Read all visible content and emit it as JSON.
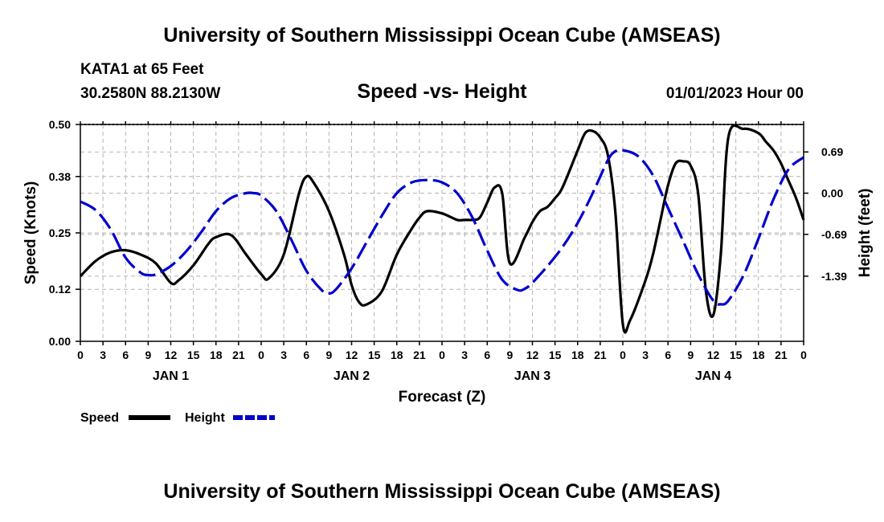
{
  "header": {
    "title": "University of Southern Mississippi Ocean Cube (AMSEAS)",
    "station": "KATA1 at 65 Feet",
    "coords": "30.2580N  88.2130W",
    "subtitle": "Speed -vs- Height",
    "datetime": "01/01/2023 Hour 00"
  },
  "footer": {
    "title": "University of Southern Mississippi Ocean Cube (AMSEAS)"
  },
  "chart_data": {
    "type": "line",
    "xlabel": "Forecast (Z)",
    "ylabel_left": "Speed (Knots)",
    "ylabel_right": "Height (feet)",
    "x_unit": "forecast hour",
    "xlim": [
      0,
      96
    ],
    "ylim_left": [
      0,
      0.5
    ],
    "ylim_right": [
      -2.48,
      1.15
    ],
    "x_tick_hours": [
      0,
      3,
      6,
      9,
      12,
      15,
      18,
      21,
      24,
      27,
      30,
      33,
      36,
      39,
      42,
      45,
      48,
      51,
      54,
      57,
      60,
      63,
      66,
      69,
      72,
      75,
      78,
      81,
      84,
      87,
      90,
      93,
      96
    ],
    "x_tick_labels": [
      "0",
      "3",
      "6",
      "9",
      "12",
      "15",
      "18",
      "21",
      "0",
      "3",
      "6",
      "9",
      "12",
      "15",
      "18",
      "21",
      "0",
      "3",
      "6",
      "9",
      "12",
      "15",
      "18",
      "21",
      "0",
      "3",
      "6",
      "9",
      "12",
      "15",
      "18",
      "21",
      "0"
    ],
    "day_labels": [
      {
        "hour": 12,
        "label": "JAN 1"
      },
      {
        "hour": 36,
        "label": "JAN 2"
      },
      {
        "hour": 60,
        "label": "JAN 3"
      },
      {
        "hour": 84,
        "label": "JAN 4"
      }
    ],
    "y_left_ticks": [
      0.0,
      0.12,
      0.25,
      0.38,
      0.5
    ],
    "y_left_tick_labels": [
      "0.00",
      "0.12",
      "0.25",
      "0.38",
      "0.50"
    ],
    "y_right_ticks": [
      0.69,
      0.0,
      -0.69,
      -1.39
    ],
    "y_right_tick_labels": [
      "0.69",
      "0.00",
      "-0.69",
      "-1.39"
    ],
    "grid": true,
    "legend": {
      "position": "bottom-left",
      "speed_label": "Speed",
      "height_label": "Height"
    },
    "series": [
      {
        "name": "Speed",
        "axis": "left",
        "color": "#000000",
        "dash": "solid",
        "x": [
          0,
          2,
          4,
          6,
          8,
          10,
          12,
          13,
          15,
          17,
          18,
          20,
          22,
          24,
          25,
          27,
          29,
          30,
          31,
          33,
          35,
          36,
          37,
          38,
          40,
          42,
          44,
          45,
          46,
          48,
          50,
          51,
          52,
          53,
          54,
          55,
          56,
          57,
          59,
          60,
          61,
          62,
          63,
          64,
          66,
          67,
          68,
          69,
          70,
          71,
          72,
          73,
          75,
          76,
          77,
          78,
          79,
          80,
          81,
          82,
          83,
          84,
          85,
          86,
          88,
          90,
          91,
          92,
          93,
          94,
          95,
          96
        ],
        "values": [
          0.15,
          0.185,
          0.205,
          0.21,
          0.2,
          0.18,
          0.135,
          0.14,
          0.175,
          0.225,
          0.24,
          0.245,
          0.2,
          0.155,
          0.145,
          0.2,
          0.34,
          0.38,
          0.365,
          0.3,
          0.2,
          0.13,
          0.09,
          0.085,
          0.115,
          0.2,
          0.26,
          0.285,
          0.3,
          0.295,
          0.28,
          0.28,
          0.28,
          0.285,
          0.32,
          0.355,
          0.34,
          0.18,
          0.24,
          0.275,
          0.3,
          0.31,
          0.33,
          0.355,
          0.44,
          0.48,
          0.485,
          0.47,
          0.43,
          0.3,
          0.04,
          0.05,
          0.14,
          0.2,
          0.28,
          0.36,
          0.41,
          0.415,
          0.405,
          0.34,
          0.12,
          0.06,
          0.2,
          0.47,
          0.49,
          0.48,
          0.46,
          0.44,
          0.41,
          0.37,
          0.33,
          0.28
        ]
      },
      {
        "name": "Height",
        "axis": "right",
        "color": "#0000cc",
        "dash": "dashed",
        "x": [
          0,
          2,
          4,
          6,
          8,
          9,
          10,
          12,
          14,
          16,
          18,
          20,
          22,
          23,
          24,
          26,
          28,
          30,
          32,
          33,
          34,
          36,
          38,
          40,
          42,
          44,
          46,
          48,
          50,
          52,
          54,
          56,
          58,
          59,
          60,
          62,
          64,
          66,
          68,
          70,
          71,
          72,
          74,
          76,
          78,
          80,
          82,
          84,
          85,
          86,
          88,
          90,
          92,
          94,
          96
        ],
        "values": [
          -0.14,
          -0.28,
          -0.6,
          -1.08,
          -1.33,
          -1.37,
          -1.36,
          -1.22,
          -0.98,
          -0.66,
          -0.3,
          -0.08,
          0.0,
          0.0,
          -0.04,
          -0.3,
          -0.78,
          -1.3,
          -1.62,
          -1.68,
          -1.6,
          -1.26,
          -0.82,
          -0.38,
          0.0,
          0.18,
          0.22,
          0.18,
          0.0,
          -0.4,
          -0.96,
          -1.45,
          -1.62,
          -1.6,
          -1.5,
          -1.22,
          -0.9,
          -0.5,
          0.0,
          0.55,
          0.7,
          0.72,
          0.62,
          0.3,
          -0.25,
          -0.8,
          -1.36,
          -1.8,
          -1.86,
          -1.8,
          -1.38,
          -0.76,
          -0.1,
          0.4,
          0.6
        ]
      }
    ]
  }
}
